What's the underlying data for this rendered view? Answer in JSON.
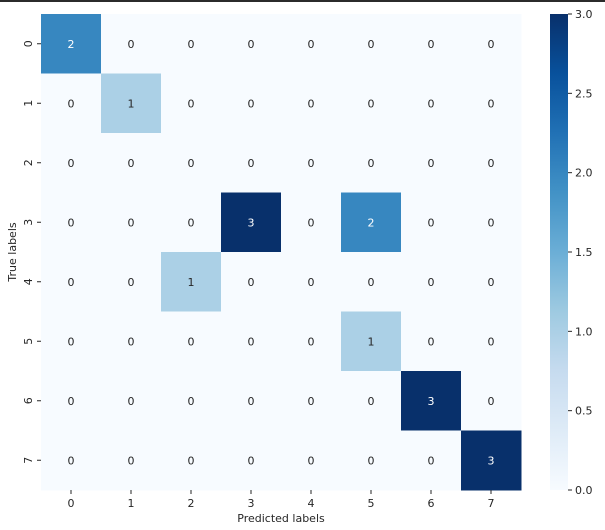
{
  "chart_data": {
    "type": "heatmap",
    "xlabel": "Predicted labels",
    "ylabel": "True labels",
    "x_categories": [
      "0",
      "1",
      "2",
      "3",
      "4",
      "5",
      "6",
      "7"
    ],
    "y_categories": [
      "0",
      "1",
      "2",
      "3",
      "4",
      "5",
      "6",
      "7"
    ],
    "values": [
      [
        2,
        0,
        0,
        0,
        0,
        0,
        0,
        0
      ],
      [
        0,
        1,
        0,
        0,
        0,
        0,
        0,
        0
      ],
      [
        0,
        0,
        0,
        0,
        0,
        0,
        0,
        0
      ],
      [
        0,
        0,
        0,
        3,
        0,
        2,
        0,
        0
      ],
      [
        0,
        0,
        1,
        0,
        0,
        0,
        0,
        0
      ],
      [
        0,
        0,
        0,
        0,
        0,
        1,
        0,
        0
      ],
      [
        0,
        0,
        0,
        0,
        0,
        0,
        3,
        0
      ],
      [
        0,
        0,
        0,
        0,
        0,
        0,
        0,
        3
      ]
    ],
    "colorbar": {
      "range": [
        0.0,
        3.0
      ],
      "ticks": [
        "0.0",
        "0.5",
        "1.0",
        "1.5",
        "2.0",
        "2.5",
        "3.0"
      ],
      "colormap": "Blues"
    },
    "annotations": true,
    "grid": false
  }
}
